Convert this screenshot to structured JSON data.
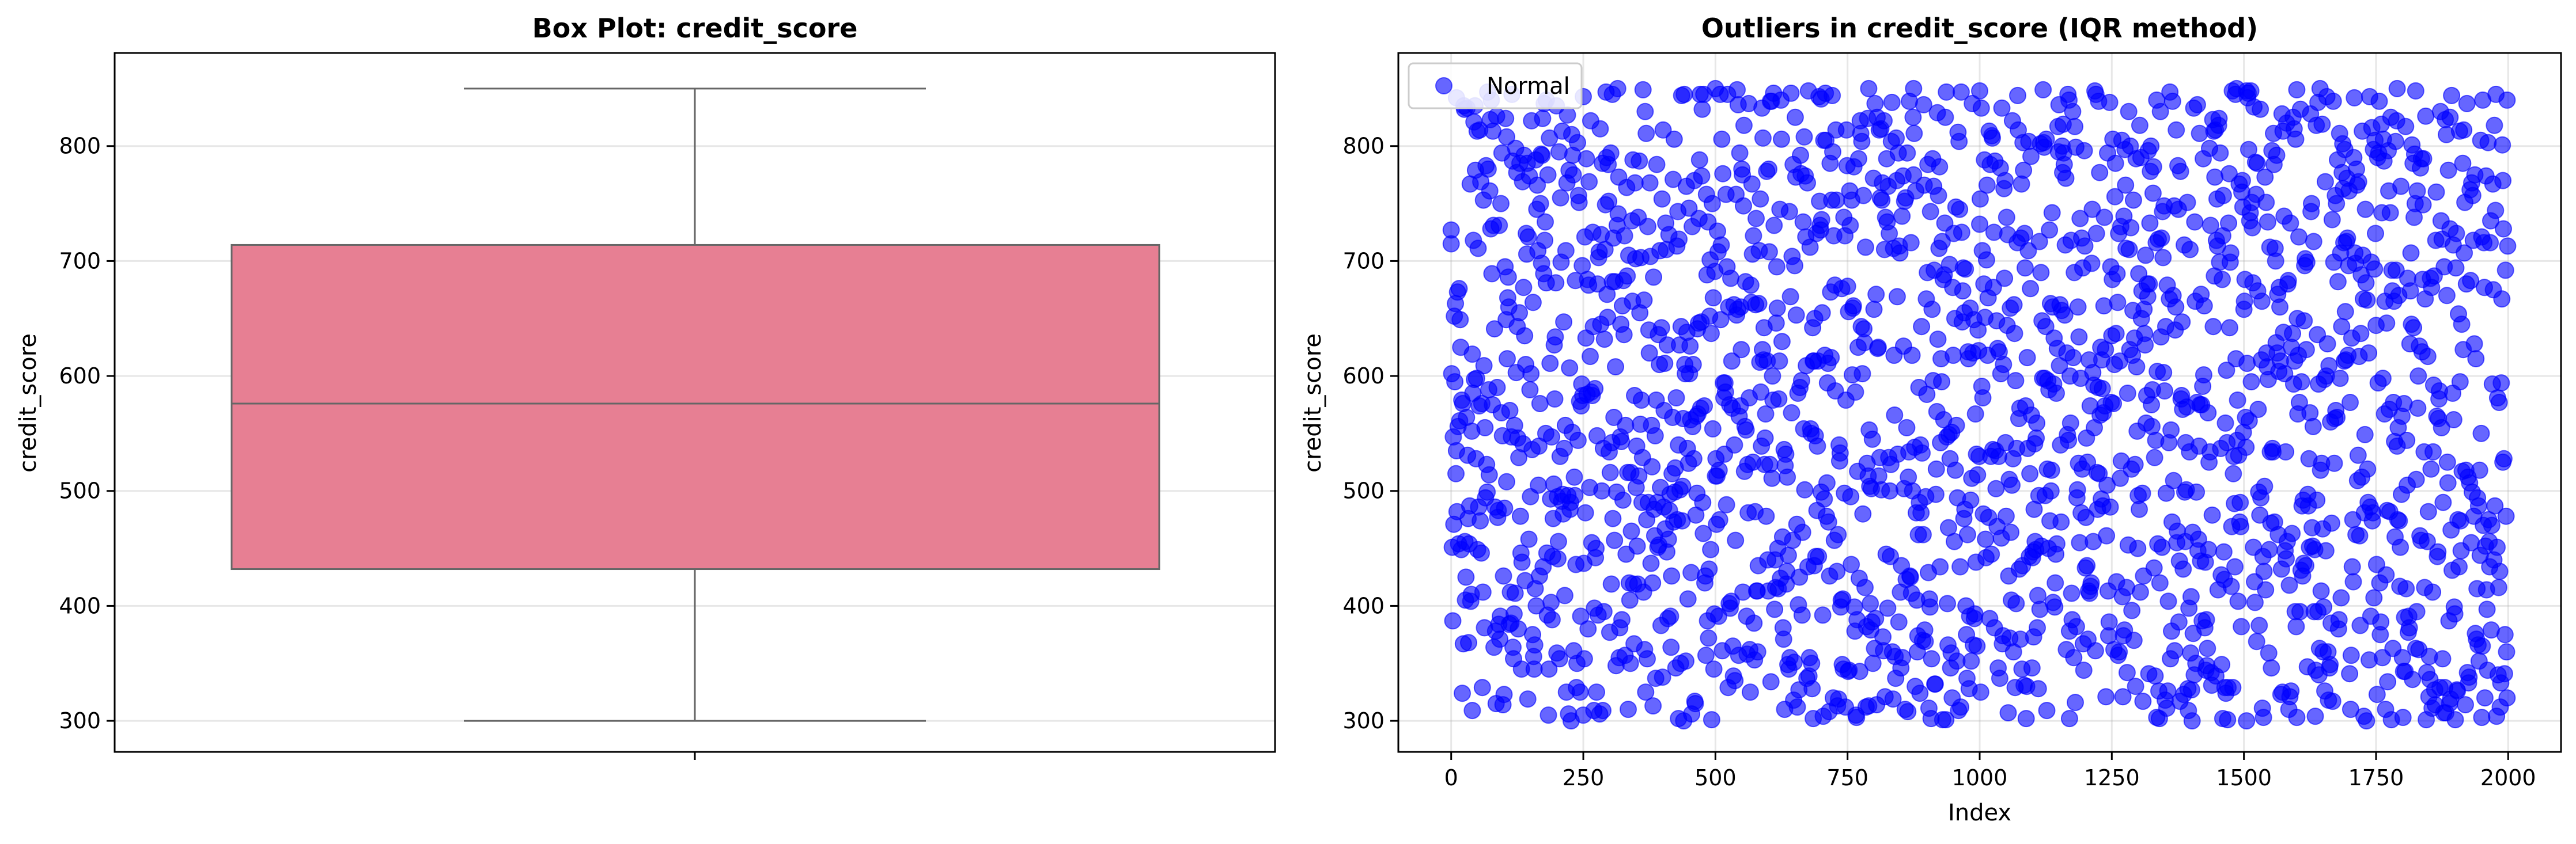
{
  "chart_data": [
    {
      "type": "box",
      "title": "Box Plot: credit_score",
      "xlabel": "",
      "ylabel": "credit_score",
      "ylim": [
        273,
        881
      ],
      "yticks": [
        300,
        400,
        500,
        600,
        700,
        800
      ],
      "grid": true,
      "box": {
        "min": 300,
        "q1": 432,
        "median": 576,
        "q3": 714,
        "max": 850,
        "color": "#e77f93",
        "edge_color": "#666666"
      }
    },
    {
      "type": "scatter",
      "title": "Outliers in credit_score (IQR method)",
      "xlabel": "Index",
      "ylabel": "credit_score",
      "xlim": [
        -100,
        2100
      ],
      "ylim": [
        273,
        881
      ],
      "xticks": [
        0,
        250,
        500,
        750,
        1000,
        1250,
        1500,
        1750,
        2000
      ],
      "yticks": [
        300,
        400,
        500,
        600,
        700,
        800
      ],
      "grid": true,
      "legend": {
        "position": "top-left",
        "entries": [
          "Normal"
        ]
      },
      "series": [
        {
          "name": "Normal",
          "color": "#0000ff",
          "alpha": 0.6,
          "x_range": [
            0,
            1999
          ],
          "y_range": [
            300,
            850
          ],
          "count": 2000,
          "points_sample": [
            [
              0,
              727
            ],
            [
              10,
              842
            ],
            [
              40,
              309
            ],
            [
              105,
              808
            ],
            [
              180,
              840
            ],
            [
              250,
              305
            ],
            [
              305,
              845
            ],
            [
              430,
              302
            ],
            [
              500,
              850
            ],
            [
              685,
              302
            ],
            [
              700,
              841
            ],
            [
              790,
              850
            ],
            [
              875,
              850
            ],
            [
              1000,
              848
            ],
            [
              1170,
              302
            ],
            [
              1335,
              840
            ],
            [
              1460,
              302
            ],
            [
              1505,
              848
            ],
            [
              1600,
              303
            ],
            [
              1640,
              838
            ],
            [
              1790,
              850
            ],
            [
              1825,
              848
            ],
            [
              1890,
              825
            ],
            [
              1950,
              303
            ],
            [
              1990,
              770
            ],
            [
              1998,
              320
            ]
          ]
        }
      ]
    }
  ]
}
